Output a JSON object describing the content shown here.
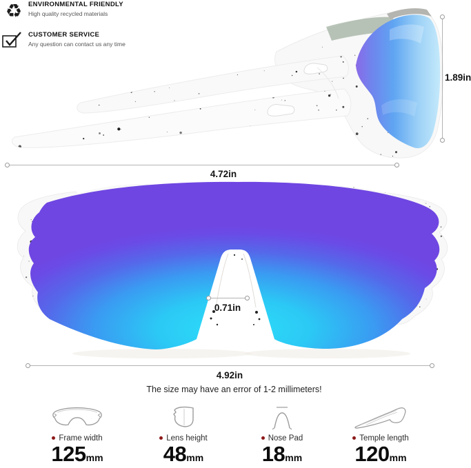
{
  "features": [
    {
      "icon": "recycle-icon",
      "title": "ENVIRONMENTAL FRIENDLY",
      "subtitle": "High quality recycled materials"
    },
    {
      "icon": "checkbox-check-icon",
      "title": "CUSTOMER SERVICE",
      "subtitle": "Any question can contact us any time"
    }
  ],
  "measurements": {
    "side_height": "1.89in",
    "side_width": "4.72in",
    "nose_gap": "0.71in",
    "front_width": "4.92in"
  },
  "disclaimer": "The size may have an error of 1-2 millimeters!",
  "specs": [
    {
      "icon": "glasses-front-icon",
      "label": "Frame width",
      "value": "125",
      "unit": "mm"
    },
    {
      "icon": "lens-icon",
      "label": "Lens height",
      "value": "48",
      "unit": "mm"
    },
    {
      "icon": "nose-pad-icon",
      "label": "Nose Pad",
      "value": "18",
      "unit": "mm"
    },
    {
      "icon": "temple-icon",
      "label": "Temple length",
      "value": "120",
      "unit": "mm"
    }
  ],
  "colors": {
    "lens_cyan": "#2BD7F8",
    "lens_blue": "#3F8FF0",
    "lens_purple": "#6348E4",
    "frame_white": "#F8F8F8",
    "speckle": "#1C1C1C",
    "bullet_red": "#8E1A1A",
    "measure_line": "#B3B3B3"
  }
}
